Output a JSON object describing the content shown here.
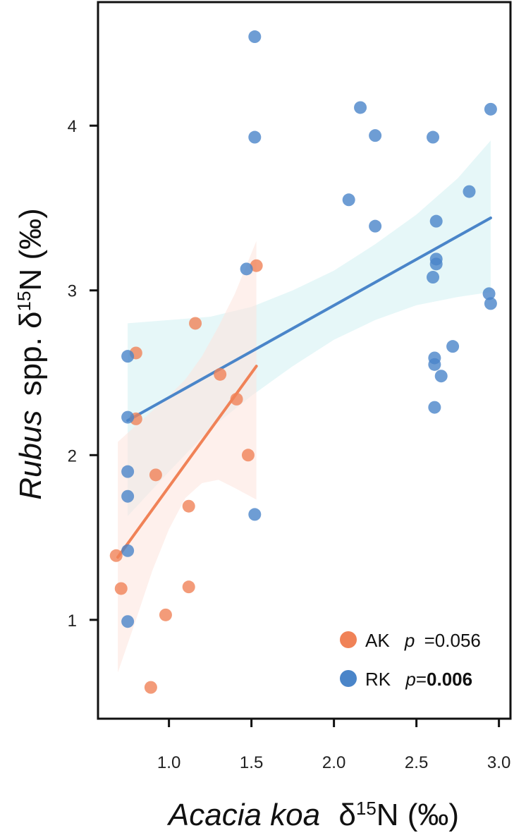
{
  "chart_data": {
    "type": "scatter",
    "xlabel": {
      "species": "Acacia koa",
      "suffix": "δ",
      "sup": "15",
      "rest": "N (‰)"
    },
    "ylabel": {
      "species": "Rubus",
      "suffix": "spp. δ",
      "sup": "15",
      "rest": "N (‰)"
    },
    "xlim": [
      0.57,
      3.07
    ],
    "ylim": [
      0.4,
      4.75
    ],
    "xticks": [
      1.0,
      1.5,
      2.0,
      2.5,
      3.0
    ],
    "xtick_labels": [
      "1.0",
      "1.5",
      "2.0",
      "2.5",
      "3.0"
    ],
    "yticks": [
      1,
      2,
      3,
      4
    ],
    "ytick_labels": [
      "1",
      "2",
      "3",
      "4"
    ],
    "grid": false,
    "legend_position": "bottom-right",
    "series": [
      {
        "name": "AK",
        "color": "#f08257",
        "p_label": "p",
        "p_value": "=0.056",
        "p_bold": false,
        "points": [
          [
            0.68,
            1.39
          ],
          [
            0.71,
            1.19
          ],
          [
            0.8,
            2.62
          ],
          [
            0.8,
            2.22
          ],
          [
            0.89,
            0.59
          ],
          [
            0.92,
            1.88
          ],
          [
            0.98,
            1.03
          ],
          [
            1.12,
            1.69
          ],
          [
            1.12,
            1.2
          ],
          [
            1.16,
            2.8
          ],
          [
            1.31,
            2.49
          ],
          [
            1.41,
            2.34
          ],
          [
            1.48,
            2.0
          ],
          [
            1.53,
            3.15
          ]
        ],
        "fit": {
          "x0": 0.69,
          "y0": 1.38,
          "x1": 1.53,
          "y1": 2.54
        },
        "band": [
          [
            0.69,
            0.68,
            2.08
          ],
          [
            0.8,
            1.0,
            2.18
          ],
          [
            0.9,
            1.3,
            2.27
          ],
          [
            1.0,
            1.55,
            2.36
          ],
          [
            1.1,
            1.74,
            2.46
          ],
          [
            1.2,
            1.83,
            2.6
          ],
          [
            1.3,
            1.85,
            2.78
          ],
          [
            1.4,
            1.8,
            2.98
          ],
          [
            1.53,
            1.73,
            3.3
          ]
        ]
      },
      {
        "name": "RK",
        "color": "#4a85c9",
        "p_label": "p",
        "p_value": "0.006",
        "p_bold": true,
        "points": [
          [
            0.75,
            2.6
          ],
          [
            0.75,
            2.23
          ],
          [
            0.75,
            1.9
          ],
          [
            0.75,
            1.75
          ],
          [
            0.75,
            1.42
          ],
          [
            0.75,
            0.99
          ],
          [
            1.47,
            3.13
          ],
          [
            1.52,
            4.54
          ],
          [
            1.52,
            3.93
          ],
          [
            1.52,
            1.64
          ],
          [
            2.09,
            3.55
          ],
          [
            2.16,
            4.11
          ],
          [
            2.25,
            3.94
          ],
          [
            2.25,
            3.39
          ],
          [
            2.6,
            3.93
          ],
          [
            2.6,
            3.08
          ],
          [
            2.61,
            2.59
          ],
          [
            2.61,
            2.55
          ],
          [
            2.61,
            2.29
          ],
          [
            2.62,
            3.42
          ],
          [
            2.62,
            3.19
          ],
          [
            2.62,
            3.16
          ],
          [
            2.65,
            2.48
          ],
          [
            2.72,
            2.66
          ],
          [
            2.82,
            3.6
          ],
          [
            2.94,
            2.98
          ],
          [
            2.95,
            4.1
          ],
          [
            2.95,
            2.92
          ]
        ],
        "fit": {
          "x0": 0.75,
          "y0": 2.21,
          "x1": 2.95,
          "y1": 3.44
        },
        "band": [
          [
            0.75,
            1.63,
            2.8
          ],
          [
            1.0,
            1.9,
            2.82
          ],
          [
            1.25,
            2.16,
            2.84
          ],
          [
            1.5,
            2.36,
            2.9
          ],
          [
            1.75,
            2.54,
            3.0
          ],
          [
            2.0,
            2.7,
            3.12
          ],
          [
            2.25,
            2.82,
            3.28
          ],
          [
            2.5,
            2.91,
            3.46
          ],
          [
            2.75,
            2.96,
            3.68
          ],
          [
            2.95,
            2.99,
            3.91
          ]
        ]
      }
    ]
  },
  "colors": {
    "ak_band": "#fde4dc",
    "rk_band": "#d6f1f3",
    "axis": "#111111"
  }
}
